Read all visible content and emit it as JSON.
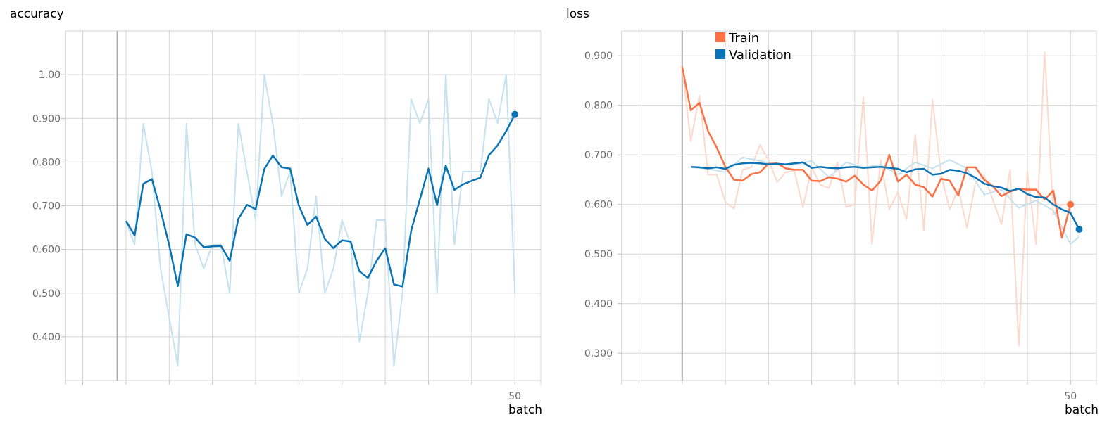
{
  "chart_data": [
    {
      "type": "line",
      "title": "accuracy",
      "xlabel": "batch",
      "x_ticks": [
        50
      ],
      "y_ticks": [
        "0.400",
        "0.500",
        "0.600",
        "0.700",
        "0.800",
        "0.900",
        "1.00"
      ],
      "ylim": [
        0.3,
        1.1
      ],
      "xlim": [
        -2,
        53
      ],
      "start_marker_x": 4,
      "grid": true,
      "series": [
        {
          "role": "raw",
          "color": "#c5e2ef",
          "x": [
            5,
            6,
            7,
            8,
            9,
            10,
            11,
            12,
            13,
            14,
            15,
            16,
            17,
            18,
            19,
            20,
            21,
            22,
            23,
            24,
            25,
            26,
            27,
            28,
            29,
            30,
            31,
            32,
            33,
            34,
            35,
            36,
            37,
            38,
            39,
            40,
            41,
            42,
            43,
            44,
            45,
            46,
            47,
            48,
            49,
            50
          ],
          "values": [
            0.665,
            0.611,
            0.888,
            0.778,
            0.556,
            0.444,
            0.333,
            0.888,
            0.611,
            0.556,
            0.611,
            0.611,
            0.5,
            0.888,
            0.778,
            0.667,
            1.0,
            0.888,
            0.722,
            0.778,
            0.5,
            0.556,
            0.722,
            0.5,
            0.556,
            0.667,
            0.611,
            0.389,
            0.5,
            0.667,
            0.667,
            0.333,
            0.5,
            0.944,
            0.889,
            0.944,
            0.5,
            1.0,
            0.611,
            0.778,
            0.778,
            0.778,
            0.944,
            0.889,
            1.0,
            0.5
          ]
        },
        {
          "role": "smoothed",
          "color": "#0a73b5",
          "x": [
            5,
            6,
            7,
            8,
            9,
            10,
            11,
            12,
            13,
            14,
            15,
            16,
            17,
            18,
            19,
            20,
            21,
            22,
            23,
            24,
            25,
            26,
            27,
            28,
            29,
            30,
            31,
            32,
            33,
            34,
            35,
            36,
            37,
            38,
            39,
            40,
            41,
            42,
            43,
            44,
            45,
            46,
            47,
            48,
            49,
            50
          ],
          "values": [
            0.665,
            0.632,
            0.75,
            0.761,
            0.69,
            0.61,
            0.516,
            0.635,
            0.627,
            0.605,
            0.607,
            0.608,
            0.574,
            0.67,
            0.702,
            0.692,
            0.784,
            0.815,
            0.788,
            0.785,
            0.7,
            0.656,
            0.675,
            0.624,
            0.603,
            0.621,
            0.618,
            0.55,
            0.535,
            0.574,
            0.603,
            0.52,
            0.515,
            0.643,
            0.714,
            0.785,
            0.701,
            0.792,
            0.736,
            0.749,
            0.757,
            0.764,
            0.816,
            0.838,
            0.871,
            0.909
          ]
        }
      ]
    },
    {
      "type": "line",
      "title": "loss",
      "xlabel": "batch",
      "x_ticks": [
        50
      ],
      "y_ticks": [
        "0.300",
        "0.400",
        "0.500",
        "0.600",
        "0.700",
        "0.800",
        "0.900"
      ],
      "ylim": [
        0.245,
        0.95
      ],
      "xlim": [
        -2,
        53
      ],
      "start_marker_x": 5,
      "grid": true,
      "legend_position": "top-left",
      "legend": [
        {
          "name": "Train",
          "color": "#fd7043"
        },
        {
          "name": "Validation",
          "color": "#0a73b5"
        }
      ],
      "series": [
        {
          "name": "Train",
          "role": "raw",
          "color": "#fcd9cc",
          "x": [
            5,
            6,
            7,
            8,
            9,
            10,
            11,
            12,
            13,
            14,
            15,
            16,
            17,
            18,
            19,
            20,
            21,
            22,
            23,
            24,
            25,
            26,
            27,
            28,
            29,
            30,
            31,
            32,
            33,
            34,
            35,
            36,
            37,
            38,
            39,
            40,
            41,
            42,
            43,
            44,
            45,
            46,
            47,
            48,
            49,
            50
          ],
          "values": [
            0.878,
            0.728,
            0.82,
            0.66,
            0.66,
            0.605,
            0.592,
            0.67,
            0.675,
            0.72,
            0.69,
            0.645,
            0.665,
            0.668,
            0.594,
            0.675,
            0.64,
            0.633,
            0.685,
            0.595,
            0.6,
            0.817,
            0.52,
            0.69,
            0.59,
            0.625,
            0.57,
            0.74,
            0.548,
            0.812,
            0.66,
            0.59,
            0.632,
            0.553,
            0.645,
            0.658,
            0.61,
            0.56,
            0.67,
            0.315,
            0.667,
            0.52,
            0.908,
            0.58,
            0.6,
            0.6
          ]
        },
        {
          "name": "Train",
          "role": "smoothed",
          "color": "#fd7043",
          "x": [
            5,
            6,
            7,
            8,
            9,
            10,
            11,
            12,
            13,
            14,
            15,
            16,
            17,
            18,
            19,
            20,
            21,
            22,
            23,
            24,
            25,
            26,
            27,
            28,
            29,
            30,
            31,
            32,
            33,
            34,
            35,
            36,
            37,
            38,
            39,
            40,
            41,
            42,
            43,
            44,
            45,
            46,
            47,
            48,
            49,
            50
          ],
          "values": [
            0.878,
            0.79,
            0.805,
            0.748,
            0.715,
            0.676,
            0.65,
            0.648,
            0.661,
            0.665,
            0.682,
            0.683,
            0.673,
            0.67,
            0.67,
            0.648,
            0.647,
            0.655,
            0.652,
            0.646,
            0.658,
            0.64,
            0.628,
            0.648,
            0.7,
            0.646,
            0.66,
            0.64,
            0.635,
            0.616,
            0.652,
            0.648,
            0.618,
            0.675,
            0.675,
            0.65,
            0.637,
            0.617,
            0.626,
            0.632,
            0.63,
            0.63,
            0.61,
            0.628,
            0.533,
            0.6
          ]
        },
        {
          "name": "Validation",
          "role": "raw",
          "color": "#c5e2ef",
          "x": [
            6,
            8,
            10,
            12,
            14,
            16,
            18,
            20,
            22,
            24,
            26,
            28,
            30,
            32,
            34,
            36,
            38,
            40,
            42,
            44,
            46,
            48,
            50,
            51
          ],
          "values": [
            0.675,
            0.672,
            0.665,
            0.695,
            0.688,
            0.68,
            0.68,
            0.688,
            0.655,
            0.685,
            0.675,
            0.68,
            0.66,
            0.685,
            0.673,
            0.69,
            0.673,
            0.62,
            0.63,
            0.593,
            0.608,
            0.588,
            0.52,
            0.535
          ]
        },
        {
          "name": "Validation",
          "role": "smoothed",
          "color": "#0a73b5",
          "x": [
            6,
            7,
            8,
            9,
            10,
            11,
            12,
            13,
            14,
            15,
            16,
            17,
            18,
            19,
            20,
            21,
            22,
            23,
            24,
            25,
            26,
            27,
            28,
            29,
            30,
            31,
            32,
            33,
            34,
            35,
            36,
            37,
            38,
            39,
            40,
            41,
            42,
            43,
            44,
            45,
            46,
            47,
            48,
            49,
            50,
            51
          ],
          "values": [
            0.676,
            0.675,
            0.673,
            0.675,
            0.672,
            0.68,
            0.683,
            0.684,
            0.683,
            0.681,
            0.682,
            0.681,
            0.683,
            0.685,
            0.674,
            0.676,
            0.674,
            0.673,
            0.675,
            0.676,
            0.674,
            0.675,
            0.676,
            0.674,
            0.672,
            0.665,
            0.671,
            0.672,
            0.66,
            0.662,
            0.67,
            0.668,
            0.663,
            0.654,
            0.642,
            0.637,
            0.634,
            0.627,
            0.632,
            0.621,
            0.615,
            0.614,
            0.6,
            0.59,
            0.583,
            0.55
          ]
        }
      ]
    }
  ]
}
